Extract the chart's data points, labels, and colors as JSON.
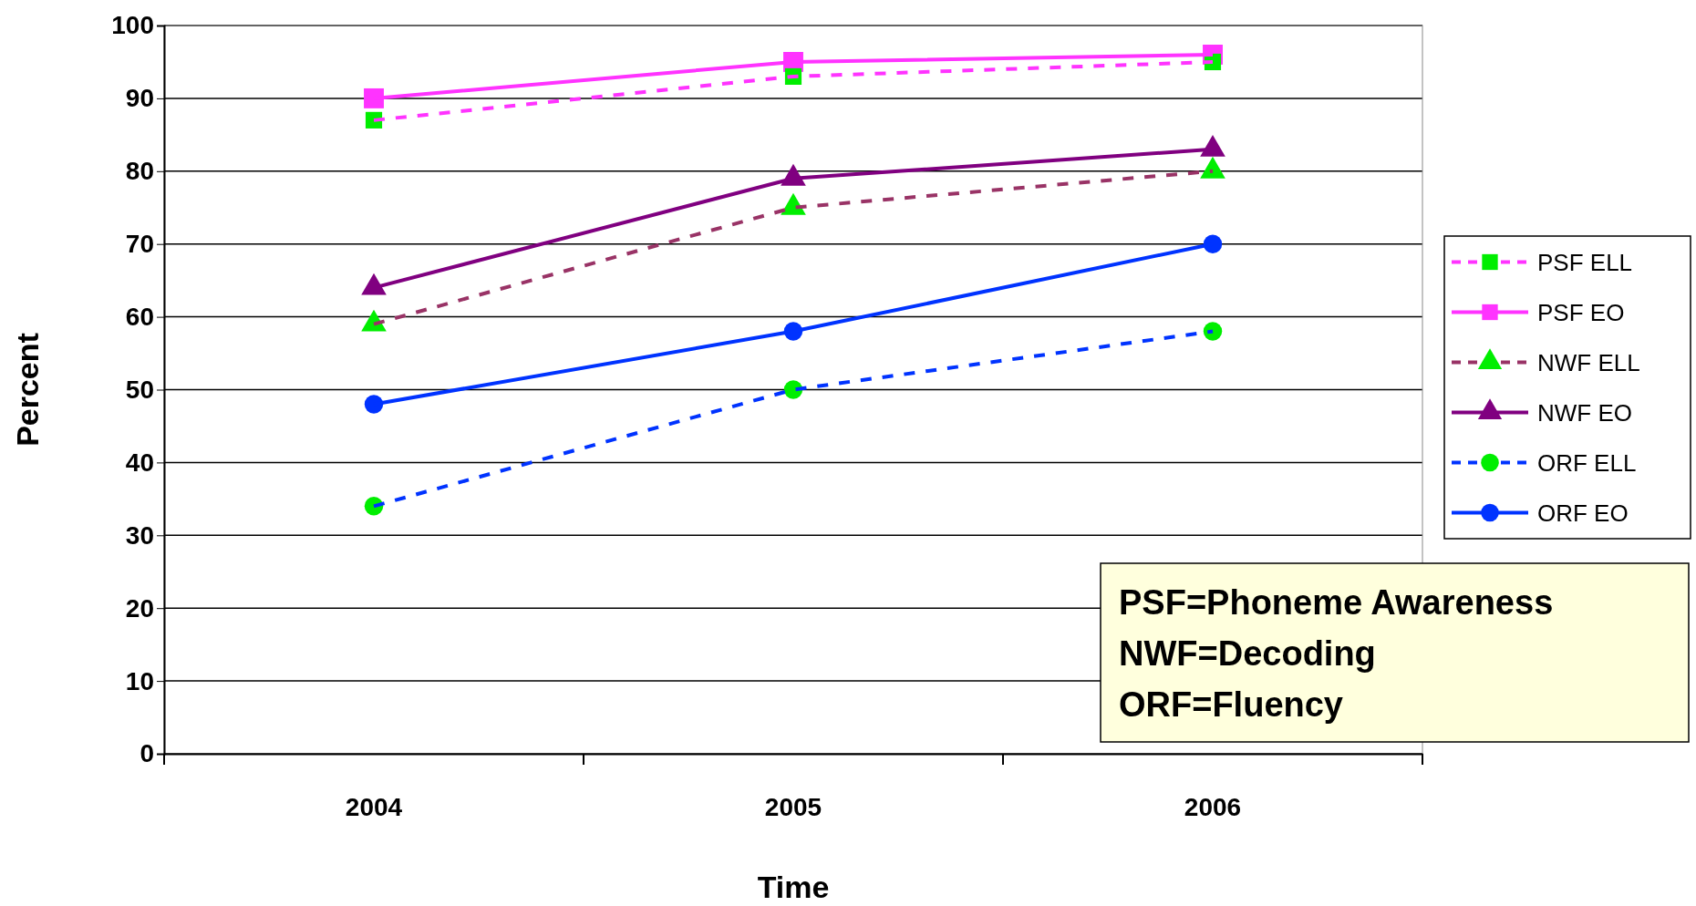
{
  "chart_data": {
    "type": "line",
    "xlabel": "Time",
    "ylabel": "Percent",
    "categories": [
      "2004",
      "2005",
      "2006"
    ],
    "ylim": [
      0,
      100
    ],
    "yticks": [
      0,
      10,
      20,
      30,
      40,
      50,
      60,
      70,
      80,
      90,
      100
    ],
    "grid": "y",
    "legend": "right",
    "series": [
      {
        "name": "PSF ELL",
        "color": "#ff33ff",
        "colors": [
          "#00ee00",
          "#00ee00",
          "#00ee00"
        ],
        "marker": "square",
        "line_style": "dashed",
        "values": [
          87,
          93,
          95
        ]
      },
      {
        "name": "PSF EO",
        "color": "#ff33ff",
        "colors": [
          "#ff33ff",
          "#ff33ff",
          "#ff33ff"
        ],
        "marker": "square",
        "line_style": "solid",
        "values": [
          90,
          95,
          96
        ]
      },
      {
        "name": "NWF ELL",
        "color": "#993366",
        "colors": [
          "#00ee00",
          "#00ee00",
          "#00ee00"
        ],
        "marker": "triangle",
        "line_style": "dashed",
        "values": [
          59,
          75,
          80
        ]
      },
      {
        "name": "NWF EO",
        "color": "#800080",
        "colors": [
          "#800080",
          "#800080",
          "#800080"
        ],
        "marker": "triangle",
        "line_style": "solid",
        "values": [
          64,
          79,
          83
        ]
      },
      {
        "name": "ORF ELL",
        "color": "#0033ff",
        "colors": [
          "#00ee00",
          "#00ee00",
          "#00ee00"
        ],
        "marker": "circle",
        "line_style": "dashed",
        "values": [
          34,
          50,
          58
        ]
      },
      {
        "name": "ORF EO",
        "color": "#0033ff",
        "colors": [
          "#0033ff",
          "#0033ff",
          "#0033ff"
        ],
        "marker": "circle",
        "line_style": "solid",
        "values": [
          48,
          58,
          70
        ]
      }
    ],
    "annotations": [
      "PSF=Phoneme Awareness",
      "NWF=Decoding",
      "ORF=Fluency"
    ]
  }
}
